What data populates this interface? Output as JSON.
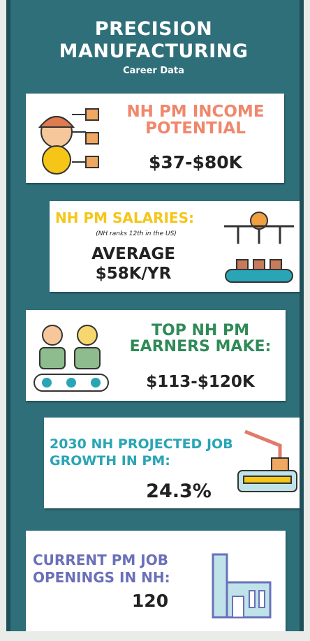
{
  "header": {
    "title": "PRECISION MANUFACTURING",
    "subtitle": "Career Data"
  },
  "cards": [
    {
      "heading": "NH PM INCOME POTENTIAL",
      "value": "$37-$80K"
    },
    {
      "heading": "NH PM SALARIES:",
      "note": "(NH ranks 12th in the US)",
      "value": "AVERAGE $58K/YR"
    },
    {
      "heading": "TOP NH PM EARNERS MAKE:",
      "value": "$113-$120K"
    },
    {
      "heading": "2030 NH PROJECTED JOB GROWTH IN PM:",
      "value": "24.3%"
    },
    {
      "heading": "CURRENT PM JOB OPENINGS IN NH:",
      "value": "120"
    }
  ]
}
